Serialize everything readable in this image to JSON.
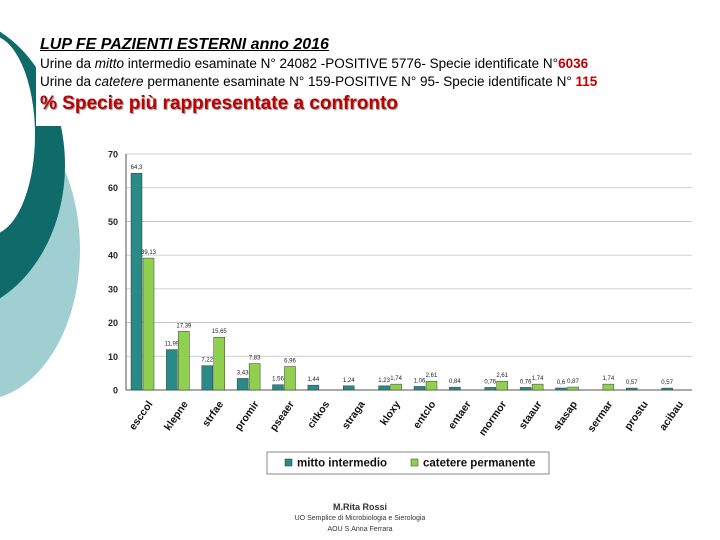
{
  "header": {
    "title": "LUP FE PAZIENTI ESTERNI anno 2016",
    "line1_pre": "Urine da ",
    "line1_em": "mitto",
    "line1_mid": " intermedio esaminate N° 24082 -POSITIVE 5776- Specie identificate N°",
    "line1_num": "6036",
    "line2_pre": "Urine da ",
    "line2_em": "catetere",
    "line2_mid": " permanente esaminate N° 159-POSITIVE N° 95- Specie identificate N° ",
    "line2_num": "115",
    "subtitle": "% Specie più rappresentate a confronto"
  },
  "chart_data": {
    "type": "bar",
    "categories": [
      "esccol",
      "klepne",
      "strfae",
      "promir",
      "pseaer",
      "citkos",
      "straga",
      "kloxy",
      "entclo",
      "entaer",
      "mormor",
      "staaur",
      "stasap",
      "sermar",
      "prostu",
      "acibau"
    ],
    "series": [
      {
        "name": "mitto intermedio",
        "color": "#2a8a88",
        "values": [
          64.3,
          11.99,
          7.22,
          3.43,
          1.56,
          1.44,
          1.24,
          1.23,
          1.06,
          0.84,
          0.76,
          0.76,
          0.6,
          null,
          0.57,
          0.57
        ],
        "labels": [
          "64,3",
          "11,99",
          "7,22",
          "3,43",
          "1,56",
          "1,44",
          "1,24",
          "1,23",
          "1,06",
          "0,84",
          "0,76",
          "0,76",
          "0,6",
          "",
          "0,57",
          "0,57"
        ]
      },
      {
        "name": "catetere permanente",
        "color": "#8fd14f",
        "values": [
          39.13,
          17.39,
          15.65,
          7.83,
          6.96,
          null,
          null,
          1.74,
          2.61,
          null,
          2.61,
          1.74,
          0.87,
          1.74,
          null,
          null
        ],
        "labels": [
          "39,13",
          "17,39",
          "15,65",
          "7,83",
          "6,96",
          "",
          "",
          "1,74",
          "2,61",
          "",
          "2,61",
          "1,74",
          "0,87",
          "1,74",
          "",
          ""
        ]
      }
    ],
    "yticks": [
      0,
      10,
      20,
      30,
      40,
      50,
      60,
      70
    ],
    "ylim": [
      0,
      70
    ],
    "legend": "bottom",
    "grid": true
  },
  "footer": {
    "name": "M.Rita Rossi",
    "unit": "UO Semplice di Microbiologia e Sierologia",
    "org": "AOU S.Anna Ferrara"
  }
}
